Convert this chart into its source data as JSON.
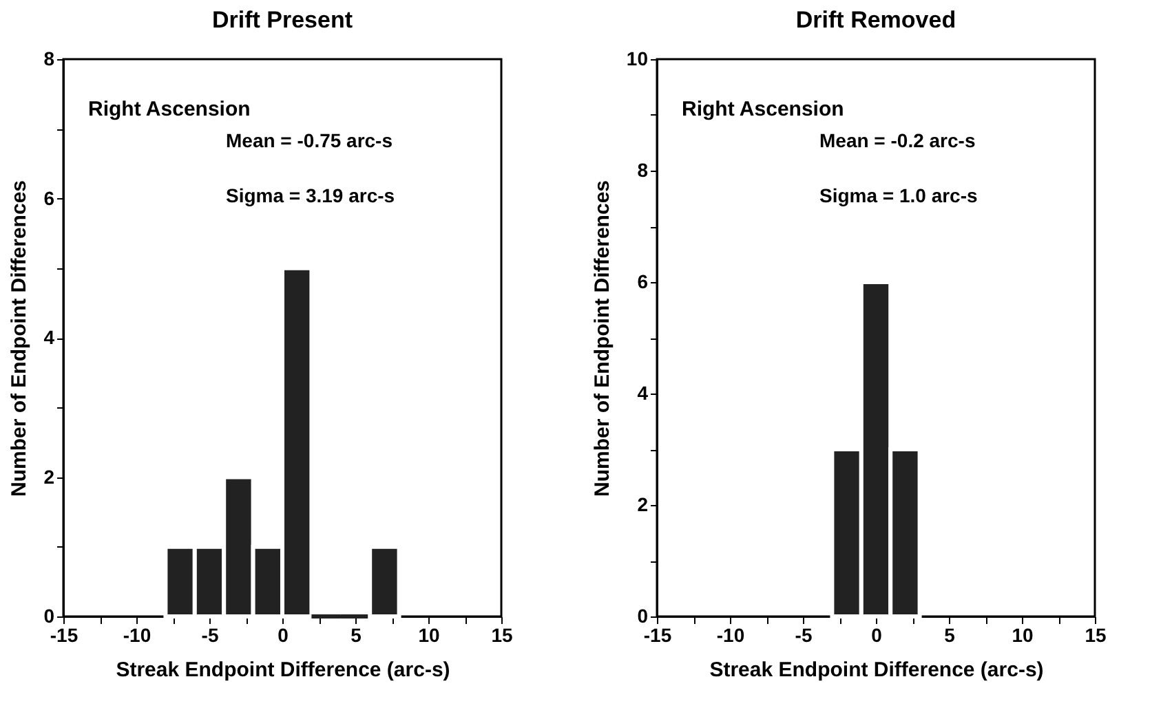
{
  "chart_data": [
    {
      "type": "histogram",
      "title": "Drift Present",
      "xlabel": "Streak Endpoint Difference (arc-s)",
      "ylabel": "Number of Endpoint Differences",
      "bins": [
        -8,
        -6,
        -4,
        -2,
        0,
        2,
        4,
        6,
        8
      ],
      "values": [
        1,
        1,
        2,
        1,
        5,
        0,
        0,
        1
      ],
      "color": "#222222",
      "xlim": [
        -15,
        15
      ],
      "xticks": [
        -15,
        {
          "value": -12.5,
          "label": null
        },
        -10,
        {
          "value": -7.5,
          "label": null
        },
        -5,
        {
          "value": -2.5,
          "label": null
        },
        0,
        {
          "value": 2.5,
          "label": null
        },
        5,
        {
          "value": 7.5,
          "label": null
        },
        10,
        {
          "value": 12.5,
          "label": null
        },
        15
      ],
      "ylim": [
        0,
        8
      ],
      "yticks": [
        0,
        {
          "value": 1,
          "label": null
        },
        2,
        {
          "value": 3,
          "label": null
        },
        4,
        {
          "value": 5,
          "label": null
        },
        6,
        {
          "value": 7,
          "label": null
        },
        8
      ],
      "grid": false,
      "annotations": [
        "Right Ascension",
        "Mean = -0.75 arc-s",
        "Sigma = 3.19 arc-s"
      ]
    },
    {
      "type": "histogram",
      "title": "Drift Removed",
      "xlabel": "Streak Endpoint Difference (arc-s)",
      "ylabel": "Number of Endpoint Differences",
      "bins": [
        -3,
        -1,
        1,
        3
      ],
      "values": [
        3,
        6,
        3
      ],
      "color": "#222222",
      "xlim": [
        -15,
        15
      ],
      "xticks": [
        -15,
        {
          "value": -12.5,
          "label": null
        },
        -10,
        {
          "value": -7.5,
          "label": null
        },
        -5,
        {
          "value": -2.5,
          "label": null
        },
        0,
        {
          "value": 2.5,
          "label": null
        },
        5,
        {
          "value": 7.5,
          "label": null
        },
        10,
        {
          "value": 12.5,
          "label": null
        },
        15
      ],
      "ylim": [
        0,
        10
      ],
      "yticks": [
        0,
        {
          "value": 1,
          "label": null
        },
        2,
        {
          "value": 3,
          "label": null
        },
        4,
        {
          "value": 5,
          "label": null
        },
        6,
        {
          "value": 7,
          "label": null
        },
        8,
        {
          "value": 9,
          "label": null
        },
        10
      ],
      "grid": false,
      "annotations": [
        "Right Ascension",
        "Mean = -0.2 arc-s",
        "Sigma = 1.0 arc-s"
      ]
    }
  ]
}
